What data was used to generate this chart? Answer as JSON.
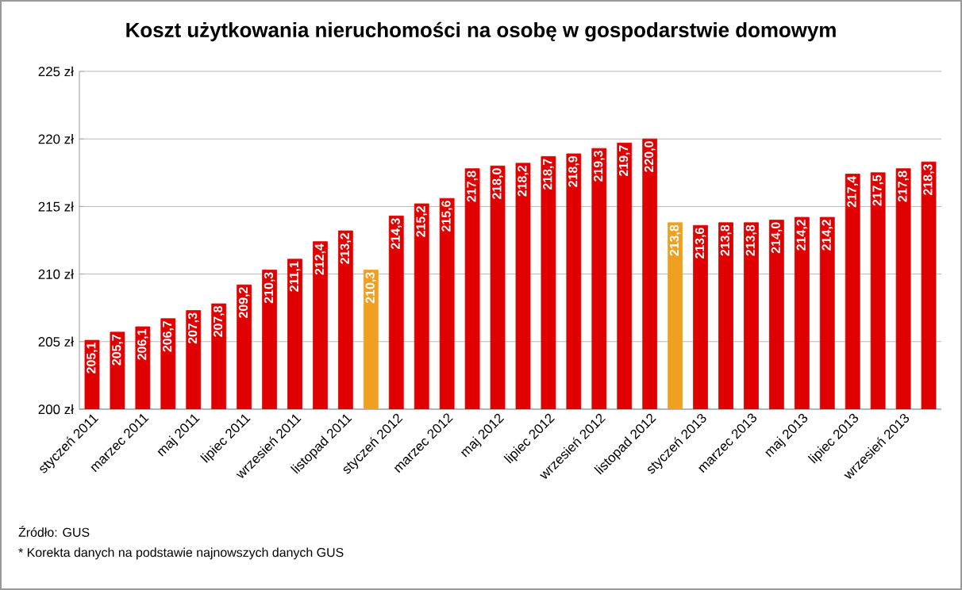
{
  "chart_data": {
    "type": "bar",
    "title": "Koszt użytkowania nieruchomości na osobę w gospodarstwie domowym",
    "categories": [
      "styczeń 2011",
      null,
      "marzec 2011",
      null,
      "maj 2011",
      null,
      "lipiec 2011",
      null,
      "wrzesień 2011",
      null,
      "listopad 2011",
      null,
      "styczeń 2012",
      null,
      "marzec 2012",
      null,
      "maj 2012",
      null,
      "lipiec 2012",
      null,
      "wrzesień 2012",
      null,
      "listopad 2012",
      null,
      "styczeń 2013",
      null,
      "marzec 2013",
      null,
      "maj 2013",
      null,
      "lipiec 2013",
      null,
      "wrzesień 2013",
      null
    ],
    "values": [
      205.1,
      205.7,
      206.1,
      206.7,
      207.3,
      207.8,
      209.2,
      210.3,
      211.1,
      212.4,
      213.2,
      210.3,
      214.3,
      215.2,
      215.6,
      217.8,
      218.0,
      218.2,
      218.7,
      218.9,
      219.3,
      219.7,
      220.0,
      213.8,
      213.6,
      213.8,
      213.8,
      214.0,
      214.2,
      214.2,
      217.4,
      217.5,
      217.8,
      218.3
    ],
    "value_labels": [
      "205,1",
      "205,7",
      "206,1",
      "206,7",
      "207,3",
      "207,8",
      "209,2",
      "210,3",
      "211,1",
      "212,4",
      "213,2",
      "210,3",
      "214,3",
      "215,2",
      "215,6",
      "217,8",
      "218,0",
      "218,2",
      "218,7",
      "218,9",
      "219,3",
      "219,7",
      "220,0",
      "213,8",
      "213,6",
      "213,8",
      "213,8",
      "214,0",
      "214,2",
      "214,2",
      "217,4",
      "217,5",
      "217,8",
      "218,3"
    ],
    "colors": [
      "#e00000",
      "#e00000",
      "#e00000",
      "#e00000",
      "#e00000",
      "#e00000",
      "#e00000",
      "#e00000",
      "#e00000",
      "#e00000",
      "#e00000",
      "#f0a020",
      "#e00000",
      "#e00000",
      "#e00000",
      "#e00000",
      "#e00000",
      "#e00000",
      "#e00000",
      "#e00000",
      "#e00000",
      "#e00000",
      "#e00000",
      "#f0a020",
      "#e00000",
      "#e00000",
      "#e00000",
      "#e00000",
      "#e00000",
      "#e00000",
      "#e00000",
      "#e00000",
      "#e00000",
      "#e00000"
    ],
    "ylim": [
      200,
      225
    ],
    "yticks": [
      {
        "value": 200,
        "label": "200 zł"
      },
      {
        "value": 205,
        "label": "205 zł"
      },
      {
        "value": 210,
        "label": "210 zł"
      },
      {
        "value": 215,
        "label": "215 zł"
      },
      {
        "value": 220,
        "label": "220 zł"
      },
      {
        "value": 225,
        "label": "225 zł"
      }
    ],
    "grid": "y",
    "annotations": [
      "Źródło: GUS",
      "* Korekta danych na podstawie najnowszych danych GUS"
    ]
  }
}
